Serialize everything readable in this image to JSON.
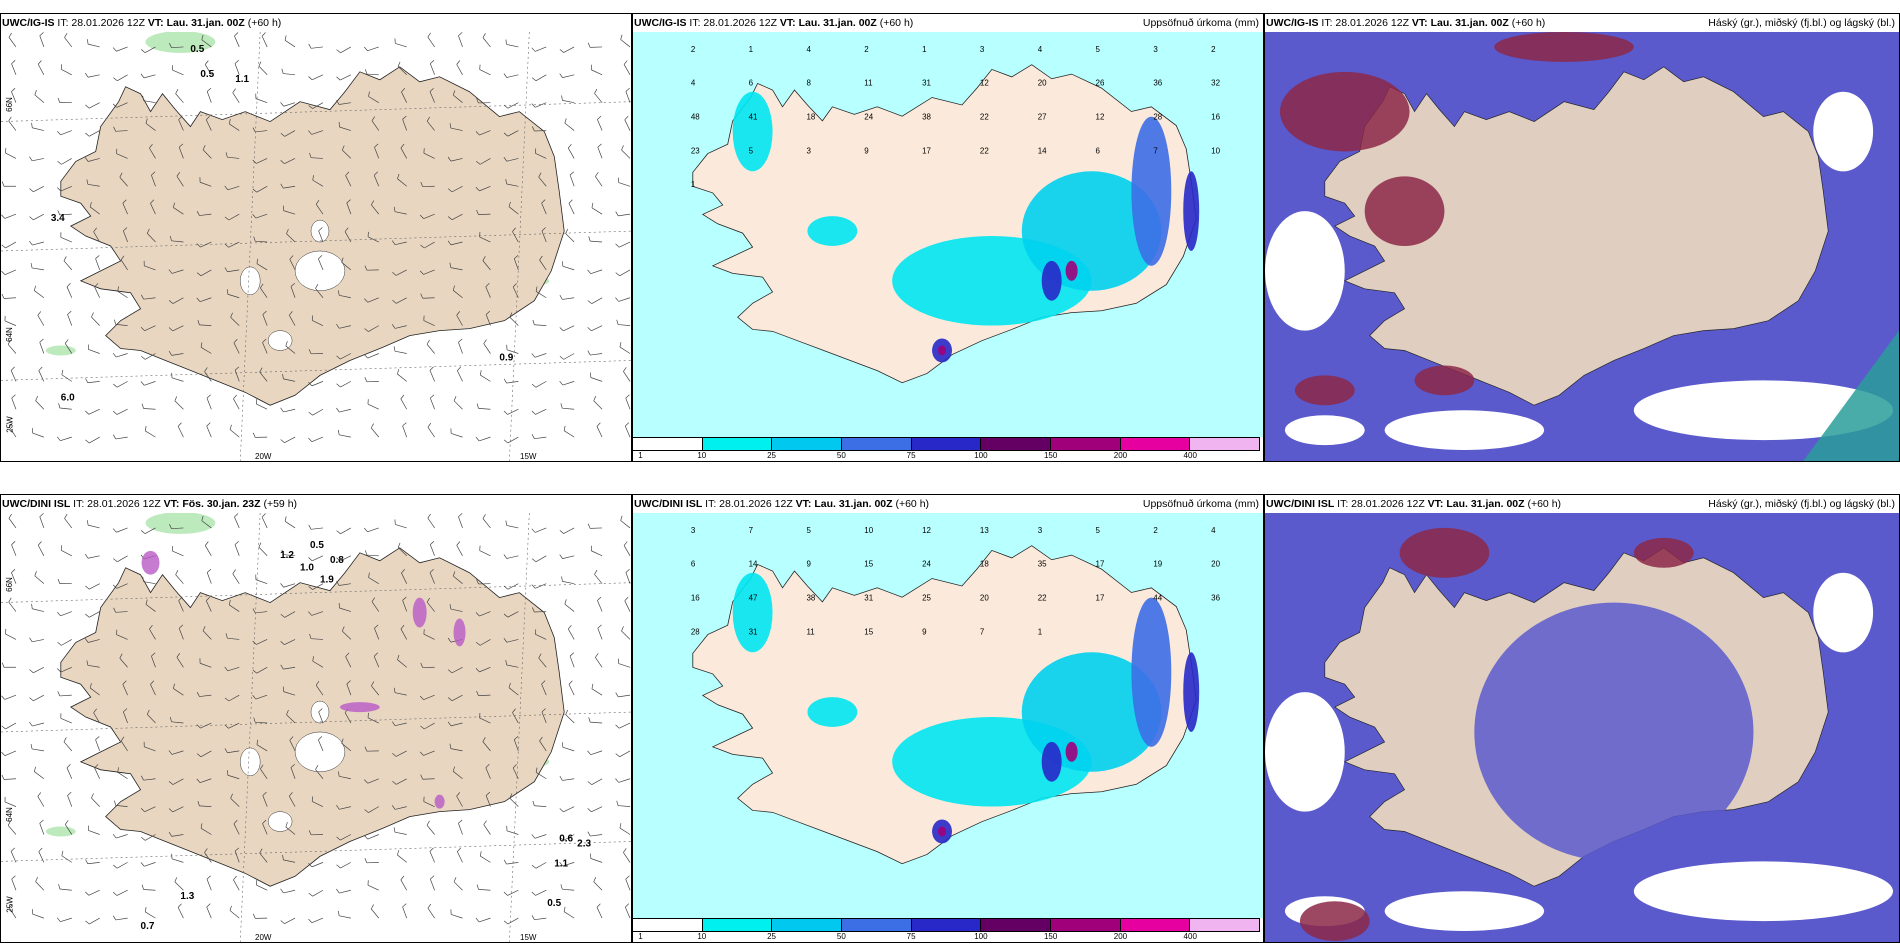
{
  "rows": [
    {
      "panels": [
        {
          "id": "wind",
          "model": "UWC/IG-IS",
          "it": "IT: 28.01.2026 12Z",
          "vt_label": "VT:",
          "vt": "Lau. 31.jan. 00Z",
          "lead": "(+60 h)",
          "right": ""
        },
        {
          "id": "precip",
          "model": "UWC/IG-IS",
          "it": "IT: 28.01.2026 12Z",
          "vt_label": "VT:",
          "vt": "Lau. 31.jan. 00Z",
          "lead": "(+60 h)",
          "right": "Uppsöfnuð úrkoma (mm)"
        },
        {
          "id": "cloud",
          "model": "UWC/IG-IS",
          "it": "IT: 28.01.2026 12Z",
          "vt_label": "VT:",
          "vt": "Lau. 31.jan. 00Z",
          "lead": "(+60 h)",
          "right": "Háský (gr.), miðský (fj.bl.) og lágský (bl.)"
        }
      ]
    },
    {
      "panels": [
        {
          "id": "wind",
          "model": "UWC/DINI ISL",
          "it": "IT: 28.01.2026 12Z",
          "vt_label": "VT:",
          "vt": "Fös. 30.jan. 23Z",
          "lead": "(+59 h)",
          "right": ""
        },
        {
          "id": "precip",
          "model": "UWC/DINI ISL",
          "it": "IT: 28.01.2026 12Z",
          "vt_label": "VT:",
          "vt": "Lau. 31.jan. 00Z",
          "lead": "(+60 h)",
          "right": "Uppsöfnuð úrkoma (mm)"
        },
        {
          "id": "cloud",
          "model": "UWC/DINI ISL",
          "it": "IT: 28.01.2026 12Z",
          "vt_label": "VT:",
          "vt": "Lau. 31.jan. 00Z",
          "lead": "(+60 h)",
          "right": "Háský (gr.), miðský (fj.bl.) og lágský (bl.)"
        }
      ]
    }
  ],
  "axes": {
    "lat_labels": [
      "66N",
      "64N"
    ],
    "lon_labels": [
      "25W",
      "20W",
      "15W"
    ]
  },
  "legend": {
    "ticks": [
      "1",
      "10",
      "25",
      "50",
      "75",
      "100",
      "150",
      "200",
      "400"
    ],
    "colors": [
      "#ffffff",
      "#00f0f0",
      "#00c8ee",
      "#3c6ee6",
      "#2828c8",
      "#640064",
      "#a0007a",
      "#e600a0",
      "#f0b4f0"
    ]
  },
  "precip_labels_top": [
    "2",
    "1",
    "4",
    "2",
    "1",
    "3",
    "4",
    "5",
    "3",
    "2",
    "4",
    "6",
    "8",
    "11",
    "31",
    "12",
    "20",
    "26",
    "36",
    "32",
    "48",
    "41",
    "18",
    "24",
    "38",
    "22",
    "27",
    "12",
    "28",
    "16",
    "23",
    "5",
    "3",
    "9",
    "17",
    "22",
    "14",
    "6",
    "7",
    "10",
    "1"
  ],
  "precip_labels_bottom": [
    "3",
    "7",
    "5",
    "10",
    "12",
    "13",
    "3",
    "5",
    "2",
    "4",
    "6",
    "14",
    "9",
    "15",
    "24",
    "18",
    "35",
    "17",
    "19",
    "20",
    "16",
    "47",
    "38",
    "31",
    "25",
    "20",
    "22",
    "17",
    "44",
    "36",
    "28",
    "31",
    "11",
    "15",
    "9",
    "7",
    "1"
  ],
  "wind_labels_top": [
    "0.5",
    "1.1",
    "3.4",
    "0.5",
    "0.9",
    "6.0"
  ],
  "wind_labels_bottom": [
    "1.2",
    "1.0",
    "0.8",
    "0.5",
    "1.9",
    "0.6",
    "0.5",
    "1.1",
    "2.3",
    "1.3",
    "0.7"
  ],
  "colors": {
    "land": "#e8d6c0",
    "precip_land": "#fbeadc",
    "sea_light": "#b8ffff",
    "cloud_low": "#5a5acc",
    "cloud_high": "#8c2848",
    "snow_green": "#b2e6b0"
  }
}
